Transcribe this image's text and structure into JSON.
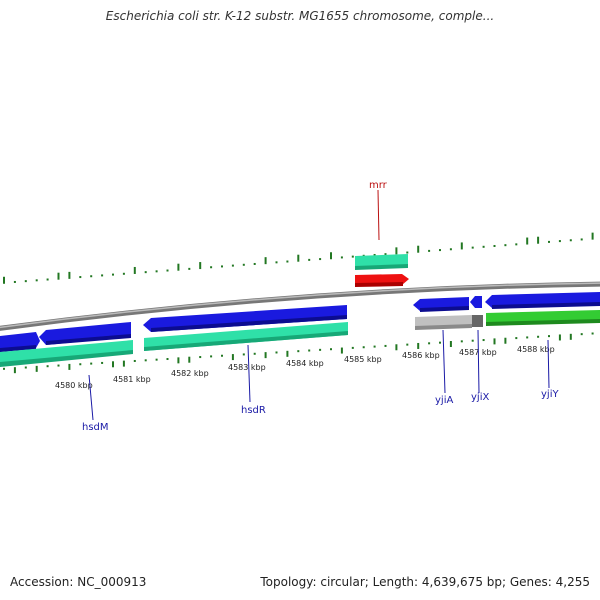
{
  "title": "Escherichia coli str. K-12 substr. MG1655 chromosome, comple...",
  "footer": {
    "accession": "Accession: NC_000913",
    "summary": "Topology: circular; Length: 4,639,675 bp; Genes: 4,255"
  },
  "colors": {
    "cds_blue": "#1a1adf",
    "gene_teal": "#2fe0a8",
    "gene_red": "#ee1111",
    "gene_green": "#33cc33",
    "gene_grey": "#bbbbbb",
    "backbone": "#888888",
    "gc_ticks": "#227722",
    "label_blue": "#1a1aa6",
    "label_red": "#bb1111"
  },
  "scale_labels": [
    "4580 kbp",
    "4581 kbp",
    "4582 kbp",
    "4583 kbp",
    "4584 kbp",
    "4585 kbp",
    "4586 kbp",
    "4587 kbp",
    "4588 kbp"
  ],
  "gene_labels": {
    "hsdM": "hsdM",
    "hsdR": "hsdR",
    "mrr": "mrr",
    "yjiA": "yjiA",
    "yjiX": "yjiX",
    "yjiY": "yjiY"
  }
}
